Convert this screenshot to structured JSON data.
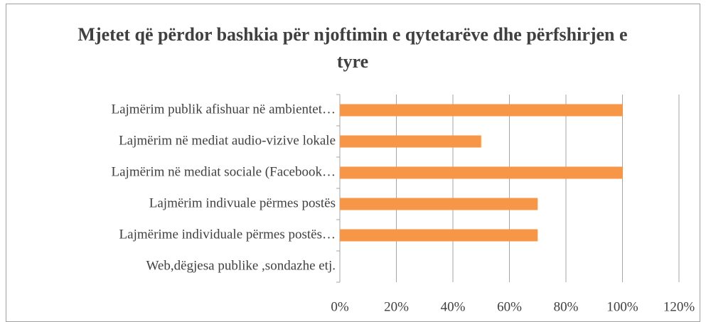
{
  "chart_data": {
    "type": "bar",
    "orientation": "horizontal",
    "title": "Mjetet që përdor bashkia për njoftimin e qytetarëve dhe përfshirjen e tyre",
    "categories": [
      "Lajmërim publik afishuar në ambientet…",
      "Lajmërim në mediat audio-vizive lokale",
      "Lajmërim në mediat sociale (Facebook…",
      "Lajmërim indivuale përmes postës",
      "Lajmërime individuale përmes postës…",
      "Web,dëgjesa publike ,sondazhe etj."
    ],
    "values": [
      100,
      50,
      100,
      70,
      70,
      0
    ],
    "color": "#f79646",
    "xlim": [
      0,
      120
    ],
    "xticks": [
      {
        "value": 0,
        "label": "0%"
      },
      {
        "value": 20,
        "label": "20%"
      },
      {
        "value": 40,
        "label": "40%"
      },
      {
        "value": 60,
        "label": "60%"
      },
      {
        "value": 80,
        "label": "80%"
      },
      {
        "value": 100,
        "label": "100%"
      },
      {
        "value": 120,
        "label": "120%"
      }
    ],
    "grid": true
  }
}
